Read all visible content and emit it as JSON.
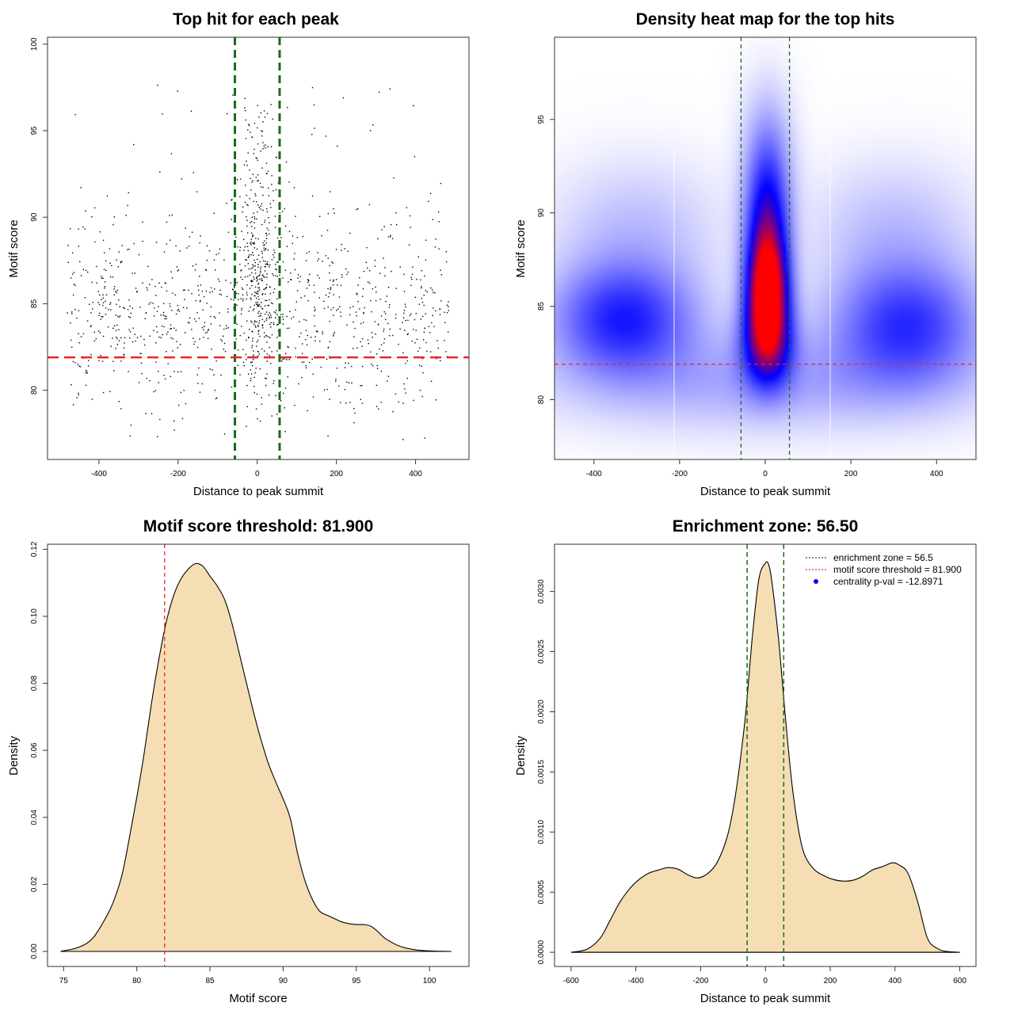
{
  "colors": {
    "threshold": "#e8262b",
    "zone": "#1a6b1a",
    "fill": "#f5deb3",
    "points": "#000000",
    "density_low": "#ffffff",
    "density_mid": "#0000ff",
    "density_high": "#ff0000",
    "legend_marker": "#0000ff"
  },
  "chart_data": [
    {
      "id": "scatter",
      "type": "scatter",
      "title": "Top hit for each peak",
      "xlabel": "Distance to peak summit",
      "ylabel": "Motif score",
      "xlim": [
        -530,
        535
      ],
      "ylim": [
        76.0,
        100.4
      ],
      "xticks": [
        -400,
        -200,
        0,
        200,
        400
      ],
      "xtick_labels": [
        "-400",
        "-200",
        "0",
        "200",
        "400"
      ],
      "yticks": [
        80,
        85,
        90,
        95,
        100
      ],
      "ytick_labels": [
        "80",
        "85",
        "90",
        "95",
        "100"
      ],
      "threshold_y": 81.9,
      "zone_x": [
        -56.5,
        56.5
      ],
      "approx_n_points": 1400
    },
    {
      "id": "heatmap",
      "type": "heatmap",
      "title": "Density heat map for the top hits",
      "xlabel": "Distance to peak summit",
      "ylabel": "Motif score",
      "xlim": [
        -492,
        492
      ],
      "ylim": [
        76.8,
        99.4
      ],
      "xticks": [
        -400,
        -200,
        0,
        200,
        400
      ],
      "xtick_labels": [
        "-400",
        "-200",
        "0",
        "200",
        "400"
      ],
      "yticks": [
        80,
        85,
        90,
        95
      ],
      "ytick_labels": [
        "80",
        "85",
        "90",
        "95"
      ],
      "threshold_y": 81.9,
      "zone_x": [
        -56.5,
        56.5
      ],
      "density_blobs": [
        {
          "x": 5,
          "y": 85.8,
          "sx": 32,
          "sy": 2.0,
          "w": 1.0
        },
        {
          "x": 5,
          "y": 89.5,
          "sx": 34,
          "sy": 2.6,
          "w": 0.5
        },
        {
          "x": 5,
          "y": 83.0,
          "sx": 40,
          "sy": 1.6,
          "w": 0.55
        },
        {
          "x": 5,
          "y": 93.5,
          "sx": 40,
          "sy": 2.5,
          "w": 0.12
        },
        {
          "x": -330,
          "y": 84.3,
          "sx": 110,
          "sy": 2.0,
          "w": 0.42
        },
        {
          "x": 330,
          "y": 84.0,
          "sx": 115,
          "sy": 2.2,
          "w": 0.38
        },
        {
          "x": -300,
          "y": 89.0,
          "sx": 130,
          "sy": 2.5,
          "w": 0.1
        },
        {
          "x": 300,
          "y": 89.0,
          "sx": 130,
          "sy": 2.5,
          "w": 0.1
        },
        {
          "x": 0,
          "y": 81.0,
          "sx": 330,
          "sy": 1.8,
          "w": 0.14
        }
      ]
    },
    {
      "id": "score_density",
      "type": "area",
      "title": "Motif score threshold: 81.900",
      "xlabel": "Motif score",
      "ylabel": "Density",
      "xlim": [
        73.9,
        102.7
      ],
      "ylim": [
        -0.0045,
        0.1215
      ],
      "xticks": [
        75,
        80,
        85,
        90,
        95,
        100
      ],
      "xtick_labels": [
        "75",
        "80",
        "85",
        "90",
        "95",
        "100"
      ],
      "yticks": [
        0.0,
        0.02,
        0.04,
        0.06,
        0.08,
        0.1,
        0.12
      ],
      "ytick_labels": [
        "0.00",
        "0.02",
        "0.04",
        "0.06",
        "0.08",
        "0.10",
        "0.12"
      ],
      "threshold_x": 81.9,
      "x": [
        74.8,
        76,
        77,
        78,
        78.5,
        79,
        79.5,
        80,
        80.5,
        81,
        81.5,
        82,
        82.5,
        83,
        83.5,
        84,
        84.5,
        85,
        85.5,
        86,
        86.5,
        87,
        87.5,
        88,
        88.5,
        89,
        89.5,
        90,
        90.5,
        91,
        91.5,
        92,
        92.5,
        93,
        93.5,
        94,
        94.5,
        95,
        95.5,
        96,
        96.5,
        97,
        98,
        99,
        100,
        101.5
      ],
      "y": [
        0.0,
        0.0012,
        0.004,
        0.011,
        0.016,
        0.023,
        0.034,
        0.046,
        0.059,
        0.074,
        0.087,
        0.098,
        0.106,
        0.111,
        0.114,
        0.1157,
        0.115,
        0.112,
        0.109,
        0.105,
        0.098,
        0.089,
        0.08,
        0.071,
        0.063,
        0.056,
        0.0505,
        0.0455,
        0.0395,
        0.029,
        0.021,
        0.0155,
        0.012,
        0.0108,
        0.0098,
        0.0088,
        0.0083,
        0.008,
        0.008,
        0.0075,
        0.0058,
        0.0038,
        0.0015,
        0.0005,
        0.00015,
        0.0
      ]
    },
    {
      "id": "distance_density",
      "type": "area",
      "title": "Enrichment zone: 56.50",
      "xlabel": "Distance to peak summit",
      "ylabel": "Density",
      "xlim": [
        -651,
        650
      ],
      "ylim": [
        -0.000118,
        0.003393
      ],
      "xticks": [
        -600,
        -400,
        -200,
        0,
        200,
        400,
        600
      ],
      "xtick_labels": [
        "-600",
        "-400",
        "-200",
        "0",
        "200",
        "400",
        "600"
      ],
      "yticks": [
        0.0,
        0.0005,
        0.001,
        0.0015,
        0.002,
        0.0025,
        0.003
      ],
      "ytick_labels": [
        "0.0000",
        "0.0005",
        "0.0010",
        "0.0015",
        "0.0020",
        "0.0025",
        "0.0030"
      ],
      "zone_x": [
        -56.5,
        56.5
      ],
      "x": [
        -600,
        -550,
        -510,
        -480,
        -450,
        -420,
        -390,
        -360,
        -330,
        -300,
        -270,
        -240,
        -210,
        -180,
        -150,
        -120,
        -100,
        -80,
        -60,
        -40,
        -20,
        0,
        10,
        20,
        40,
        60,
        80,
        100,
        120,
        150,
        180,
        210,
        240,
        270,
        300,
        330,
        360,
        390,
        410,
        440,
        470,
        500,
        530,
        560,
        600
      ],
      "y": [
        0.0,
        2.63e-05,
        0.000118,
        0.000263,
        0.000414,
        0.000526,
        0.000605,
        0.000658,
        0.000684,
        0.000704,
        0.000691,
        0.000645,
        0.000618,
        0.000651,
        0.000743,
        0.000941,
        0.001184,
        0.001546,
        0.002013,
        0.002632,
        0.003105,
        0.003237,
        0.003224,
        0.003079,
        0.002618,
        0.002007,
        0.001447,
        0.001053,
        0.000816,
        0.000691,
        0.000638,
        0.000605,
        0.000592,
        0.000599,
        0.000632,
        0.000684,
        0.000711,
        0.000743,
        0.00073,
        0.000658,
        0.000421,
        0.000118,
        3.29e-05,
        6.6e-06,
        0.0
      ],
      "legend": [
        {
          "label": "enrichment zone = 56.5",
          "kind": "dotted",
          "color": "#1a6b1a"
        },
        {
          "label": "motif score threshold = 81.900",
          "kind": "dotted",
          "color": "#e8262b"
        },
        {
          "label": "centrality p-val = -12.8971",
          "kind": "point",
          "color": "#0000ff"
        }
      ]
    }
  ]
}
